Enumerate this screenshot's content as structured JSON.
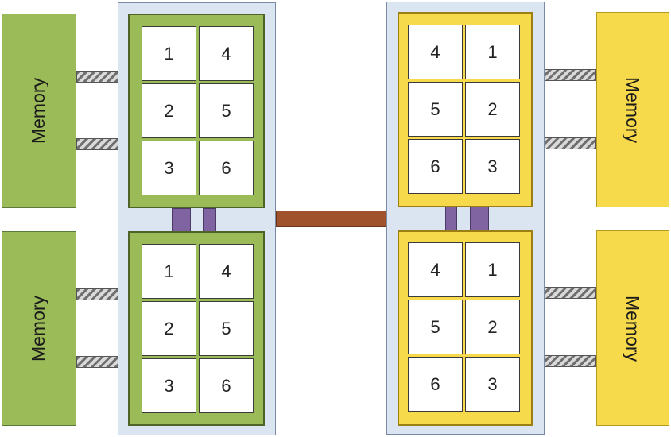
{
  "diagram": {
    "memory_label": "Memory",
    "colors": {
      "green_chip": "#9bbb59",
      "yellow_chip": "#f7d94c",
      "socket": "#dbe5f1",
      "link": "#8064a2",
      "interconnect": "#a0522d"
    },
    "left_socket": {
      "top_chip_cores": [
        "1",
        "4",
        "2",
        "5",
        "3",
        "6"
      ],
      "bottom_chip_cores": [
        "1",
        "4",
        "2",
        "5",
        "3",
        "6"
      ]
    },
    "right_socket": {
      "top_chip_cores": [
        "4",
        "1",
        "5",
        "2",
        "6",
        "3"
      ],
      "bottom_chip_cores": [
        "4",
        "1",
        "5",
        "2",
        "6",
        "3"
      ]
    }
  }
}
